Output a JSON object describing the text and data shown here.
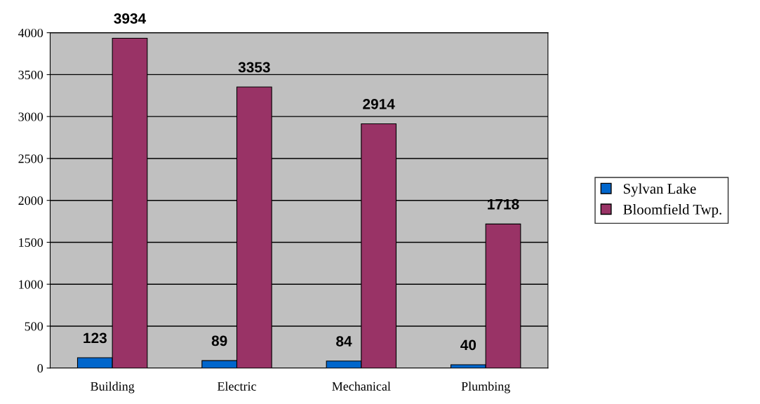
{
  "chart_data": {
    "type": "bar",
    "categories": [
      "Building",
      "Electric",
      "Mechanical",
      "Plumbing"
    ],
    "series": [
      {
        "name": "Sylvan Lake",
        "color": "#0066cc",
        "values": [
          123,
          89,
          84,
          40
        ]
      },
      {
        "name": "Bloomfield Twp.",
        "color": "#993366",
        "values": [
          3934,
          3353,
          2914,
          1718
        ]
      }
    ],
    "ylim": [
      0,
      4000
    ],
    "yticks": [
      0,
      500,
      1000,
      1500,
      2000,
      2500,
      3000,
      3500,
      4000
    ],
    "grid": "y",
    "legend": "right",
    "data_labels": true
  }
}
